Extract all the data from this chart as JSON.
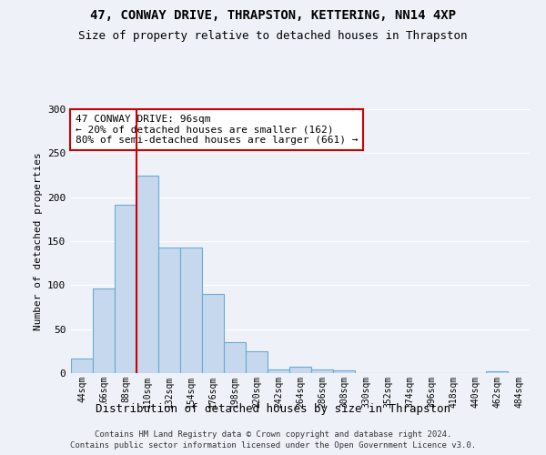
{
  "title": "47, CONWAY DRIVE, THRAPSTON, KETTERING, NN14 4XP",
  "subtitle": "Size of property relative to detached houses in Thrapston",
  "xlabel": "Distribution of detached houses by size in Thrapston",
  "ylabel": "Number of detached properties",
  "bar_color": "#c5d8ee",
  "bar_edge_color": "#6aaad4",
  "bins": [
    "44sqm",
    "66sqm",
    "88sqm",
    "110sqm",
    "132sqm",
    "154sqm",
    "176sqm",
    "198sqm",
    "220sqm",
    "242sqm",
    "264sqm",
    "286sqm",
    "308sqm",
    "330sqm",
    "352sqm",
    "374sqm",
    "396sqm",
    "418sqm",
    "440sqm",
    "462sqm",
    "484sqm"
  ],
  "values": [
    17,
    96,
    191,
    224,
    143,
    143,
    90,
    35,
    25,
    4,
    7,
    4,
    3,
    0,
    0,
    0,
    0,
    0,
    0,
    2,
    0
  ],
  "vline_color": "#cc0000",
  "vline_x_index": 2.5,
  "annotation_text": "47 CONWAY DRIVE: 96sqm\n← 20% of detached houses are smaller (162)\n80% of semi-detached houses are larger (661) →",
  "annotation_box_color": "#ffffff",
  "annotation_box_edge": "#cc0000",
  "ylim": [
    0,
    300
  ],
  "yticks": [
    0,
    50,
    100,
    150,
    200,
    250,
    300
  ],
  "footer_line1": "Contains HM Land Registry data © Crown copyright and database right 2024.",
  "footer_line2": "Contains public sector information licensed under the Open Government Licence v3.0.",
  "bg_color": "#eef2f8",
  "grid_color": "#ffffff"
}
